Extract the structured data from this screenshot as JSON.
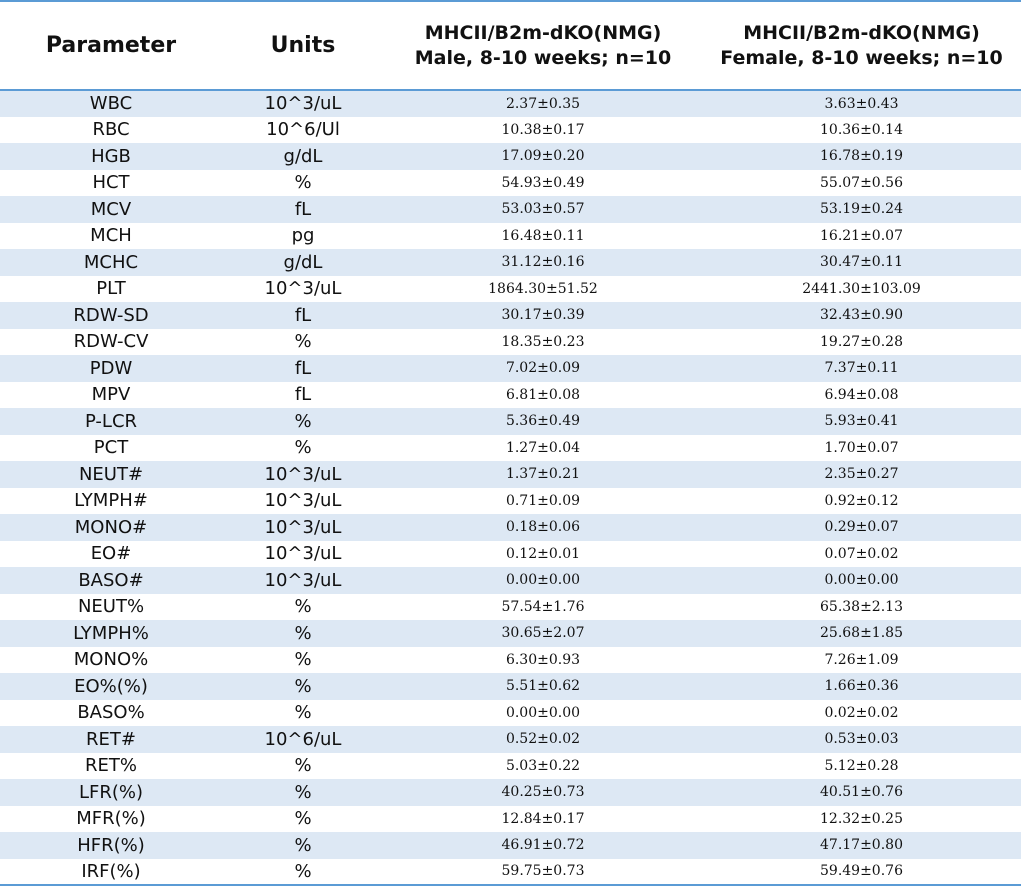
{
  "table": {
    "headers": {
      "parameter": "Parameter",
      "units": "Units",
      "male_line1": "MHCII/B2m-dKO(NMG)",
      "male_line2": "Male, 8-10 weeks; n=10",
      "female_line1": "MHCII/B2m-dKO(NMG)",
      "female_line2": "Female, 8-10 weeks; n=10"
    },
    "rows": [
      {
        "parameter": "WBC",
        "units": "10^3/uL",
        "male": "2.37±0.35",
        "female": "3.63±0.43"
      },
      {
        "parameter": "RBC",
        "units": "10^6/Ul",
        "male": "10.38±0.17",
        "female": "10.36±0.14"
      },
      {
        "parameter": "HGB",
        "units": "g/dL",
        "male": "17.09±0.20",
        "female": "16.78±0.19"
      },
      {
        "parameter": "HCT",
        "units": "%",
        "male": "54.93±0.49",
        "female": "55.07±0.56"
      },
      {
        "parameter": "MCV",
        "units": "fL",
        "male": "53.03±0.57",
        "female": "53.19±0.24"
      },
      {
        "parameter": "MCH",
        "units": "pg",
        "male": "16.48±0.11",
        "female": "16.21±0.07"
      },
      {
        "parameter": "MCHC",
        "units": "g/dL",
        "male": "31.12±0.16",
        "female": "30.47±0.11"
      },
      {
        "parameter": "PLT",
        "units": "10^3/uL",
        "male": "1864.30±51.52",
        "female": "2441.30±103.09"
      },
      {
        "parameter": "RDW-SD",
        "units": "fL",
        "male": "30.17±0.39",
        "female": "32.43±0.90"
      },
      {
        "parameter": "RDW-CV",
        "units": "%",
        "male": "18.35±0.23",
        "female": "19.27±0.28"
      },
      {
        "parameter": "PDW",
        "units": "fL",
        "male": "7.02±0.09",
        "female": "7.37±0.11"
      },
      {
        "parameter": "MPV",
        "units": "fL",
        "male": "6.81±0.08",
        "female": "6.94±0.08"
      },
      {
        "parameter": "P-LCR",
        "units": "%",
        "male": "5.36±0.49",
        "female": "5.93±0.41"
      },
      {
        "parameter": "PCT",
        "units": "%",
        "male": "1.27±0.04",
        "female": "1.70±0.07"
      },
      {
        "parameter": "NEUT#",
        "units": "10^3/uL",
        "male": "1.37±0.21",
        "female": "2.35±0.27"
      },
      {
        "parameter": "LYMPH#",
        "units": "10^3/uL",
        "male": "0.71±0.09",
        "female": "0.92±0.12"
      },
      {
        "parameter": "MONO#",
        "units": "10^3/uL",
        "male": "0.18±0.06",
        "female": "0.29±0.07"
      },
      {
        "parameter": "EO#",
        "units": "10^3/uL",
        "male": "0.12±0.01",
        "female": "0.07±0.02"
      },
      {
        "parameter": "BASO#",
        "units": "10^3/uL",
        "male": "0.00±0.00",
        "female": "0.00±0.00"
      },
      {
        "parameter": "NEUT%",
        "units": "%",
        "male": "57.54±1.76",
        "female": "65.38±2.13"
      },
      {
        "parameter": "LYMPH%",
        "units": "%",
        "male": "30.65±2.07",
        "female": "25.68±1.85"
      },
      {
        "parameter": "MONO%",
        "units": "%",
        "male": "6.30±0.93",
        "female": "7.26±1.09"
      },
      {
        "parameter": "EO%(%)",
        "units": "%",
        "male": "5.51±0.62",
        "female": "1.66±0.36"
      },
      {
        "parameter": "BASO%",
        "units": "%",
        "male": "0.00±0.00",
        "female": "0.02±0.02"
      },
      {
        "parameter": "RET#",
        "units": "10^6/uL",
        "male": "0.52±0.02",
        "female": "0.53±0.03"
      },
      {
        "parameter": "RET%",
        "units": "%",
        "male": "5.03±0.22",
        "female": "5.12±0.28"
      },
      {
        "parameter": "LFR(%)",
        "units": "%",
        "male": "40.25±0.73",
        "female": "40.51±0.76"
      },
      {
        "parameter": "MFR(%)",
        "units": "%",
        "male": "12.84±0.17",
        "female": "12.32±0.25"
      },
      {
        "parameter": "HFR(%)",
        "units": "%",
        "male": "46.91±0.72",
        "female": "47.17±0.80"
      },
      {
        "parameter": "IRF(%)",
        "units": "%",
        "male": "59.75±0.73",
        "female": "59.49±0.76"
      }
    ]
  },
  "colors": {
    "rule": "#5b9bd5",
    "row_shade": "#dde8f4"
  }
}
